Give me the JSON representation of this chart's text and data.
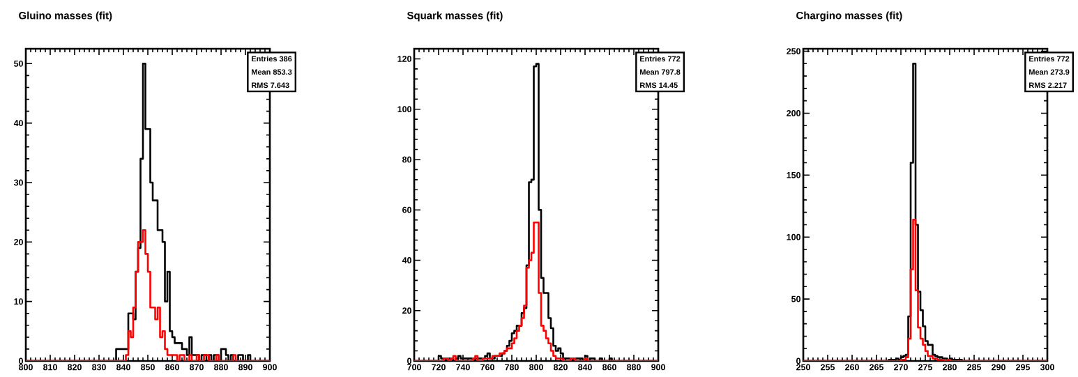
{
  "chart_data": [
    {
      "type": "histogram",
      "title": "Gluino masses (fit)",
      "bins": [
        800,
        837,
        838,
        839,
        840,
        841,
        842,
        843,
        844,
        845,
        846,
        847,
        848,
        849,
        850,
        851,
        852,
        853,
        854,
        855,
        856,
        857,
        858,
        859,
        860,
        861,
        862,
        863,
        864,
        865,
        866,
        867,
        868,
        869,
        870,
        871,
        872,
        873,
        874,
        875,
        876,
        877,
        878,
        879,
        880,
        881,
        882,
        883,
        884,
        885,
        886,
        887,
        888,
        889,
        890,
        891,
        892,
        893,
        900
      ],
      "series": [
        {
          "color": "#000000",
          "values": [
            0,
            2,
            2,
            2,
            2,
            2,
            8,
            8,
            7,
            15,
            19,
            34,
            50,
            39,
            39,
            30,
            27,
            27,
            22,
            22,
            20,
            10,
            15,
            5,
            4,
            3,
            3,
            3,
            2,
            2,
            1,
            4,
            1,
            1,
            1,
            0,
            1,
            1,
            0,
            1,
            0,
            1,
            1,
            0,
            2,
            2,
            1,
            0,
            1,
            0,
            0,
            1,
            1,
            0,
            0,
            1,
            0,
            0
          ]
        },
        {
          "color": "#ff0000",
          "values": [
            0,
            0,
            0,
            0,
            0,
            1,
            5,
            4,
            9,
            15,
            20,
            20,
            22,
            18,
            15,
            9,
            9,
            7,
            9,
            4,
            5,
            2,
            1,
            1,
            1,
            1,
            0,
            1,
            1,
            0,
            0,
            1,
            0,
            0,
            1,
            0,
            0,
            1,
            1,
            0,
            0,
            0,
            1,
            0,
            0,
            0,
            0,
            0,
            0,
            1,
            0,
            0,
            0,
            0,
            0,
            0,
            0,
            0
          ]
        }
      ],
      "xlim": [
        800,
        900
      ],
      "ylim": [
        0,
        52.5
      ],
      "xticks": [
        800,
        810,
        820,
        830,
        840,
        850,
        860,
        870,
        880,
        890,
        900
      ],
      "yticks": [
        0,
        10,
        20,
        30,
        40,
        50
      ],
      "annotations": [
        "Entries 386",
        "Mean 853.3",
        "RMS 7.643"
      ]
    },
    {
      "type": "histogram",
      "title": "Squark masses (fit)",
      "bins": [
        700,
        718,
        720,
        722,
        724,
        726,
        728,
        730,
        732,
        734,
        736,
        738,
        740,
        742,
        744,
        746,
        748,
        750,
        752,
        754,
        756,
        758,
        760,
        762,
        764,
        766,
        768,
        770,
        772,
        774,
        776,
        778,
        780,
        782,
        784,
        786,
        788,
        790,
        792,
        794,
        796,
        798,
        800,
        802,
        804,
        806,
        808,
        810,
        812,
        814,
        816,
        818,
        820,
        822,
        824,
        826,
        828,
        830,
        832,
        834,
        836,
        838,
        840,
        842,
        844,
        846,
        848,
        850,
        852,
        854,
        856,
        858,
        860,
        862,
        864,
        900
      ],
      "series": [
        {
          "color": "#000000",
          "values": [
            0,
            0,
            2,
            1,
            1,
            0,
            1,
            1,
            0,
            1,
            2,
            1,
            1,
            1,
            1,
            1,
            0,
            1,
            1,
            1,
            1,
            2,
            3,
            1,
            1,
            2,
            2,
            2,
            3,
            4,
            6,
            8,
            11,
            12,
            14,
            14,
            19,
            21,
            38,
            71,
            72,
            117,
            118,
            60,
            33,
            27,
            27,
            17,
            13,
            6,
            4,
            5,
            3,
            1,
            1,
            1,
            1,
            0,
            1,
            1,
            1,
            0,
            2,
            0,
            1,
            1,
            0,
            0,
            1,
            0,
            0,
            0,
            1,
            0,
            0
          ]
        },
        {
          "color": "#ff0000",
          "values": [
            0,
            0,
            0,
            0,
            1,
            1,
            0,
            1,
            2,
            0,
            0,
            0,
            0,
            0,
            0,
            0,
            1,
            2,
            0,
            0,
            1,
            1,
            1,
            1,
            2,
            2,
            2,
            3,
            3,
            4,
            5,
            5,
            7,
            9,
            12,
            14,
            17,
            22,
            37,
            40,
            43,
            55,
            55,
            27,
            14,
            12,
            9,
            7,
            4,
            2,
            1,
            1,
            1,
            0,
            0,
            0,
            1,
            1,
            0,
            0,
            0,
            0,
            1,
            0,
            0,
            0,
            0,
            0,
            0,
            0,
            0,
            0,
            0,
            0,
            0
          ]
        }
      ],
      "xlim": [
        700,
        900
      ],
      "ylim": [
        0,
        124
      ],
      "xticks": [
        700,
        720,
        740,
        760,
        780,
        800,
        820,
        840,
        860,
        880,
        900
      ],
      "yticks": [
        0,
        20,
        40,
        60,
        80,
        100,
        120
      ],
      "annotations": [
        "Entries 772",
        "Mean 797.8",
        "RMS 14.45"
      ]
    },
    {
      "type": "histogram",
      "title": "Chargino masses (fit)",
      "bins": [
        250,
        267,
        267.5,
        268,
        268.5,
        269,
        269.5,
        270,
        270.5,
        271,
        271.5,
        272,
        272.5,
        273,
        273.5,
        274,
        274.5,
        275,
        275.5,
        276,
        276.5,
        277,
        277.5,
        278,
        278.5,
        279,
        279.5,
        280,
        280.5,
        281,
        281.5,
        282,
        282.5,
        283,
        300
      ],
      "series": [
        {
          "color": "#000000",
          "values": [
            0,
            0,
            1,
            1,
            1,
            2,
            1,
            3,
            4,
            5,
            36,
            160,
            240,
            110,
            56,
            41,
            28,
            16,
            13,
            13,
            5,
            4,
            3,
            3,
            2,
            2,
            1,
            2,
            1,
            1,
            1,
            1,
            0,
            0
          ]
        },
        {
          "color": "#ff0000",
          "values": [
            0,
            0,
            0,
            0,
            0,
            0,
            0,
            1,
            1,
            3,
            18,
            74,
            114,
            57,
            27,
            18,
            13,
            8,
            4,
            4,
            2,
            2,
            1,
            1,
            1,
            0,
            1,
            0,
            0,
            0,
            0,
            0,
            0,
            0
          ]
        }
      ],
      "xlim": [
        250,
        300
      ],
      "ylim": [
        0,
        252
      ],
      "xticks": [
        250,
        255,
        260,
        265,
        270,
        275,
        280,
        285,
        290,
        295,
        300
      ],
      "yticks": [
        0,
        50,
        100,
        150,
        200,
        250
      ],
      "annotations": [
        "Entries 772",
        "Mean 273.9",
        "RMS 2.217"
      ]
    }
  ]
}
